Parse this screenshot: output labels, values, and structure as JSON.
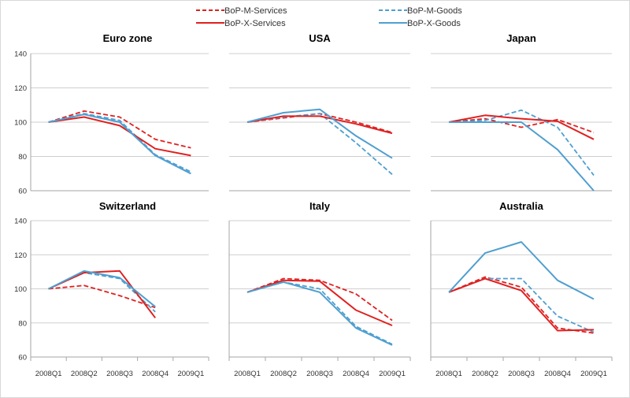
{
  "chart_data": {
    "type": "line",
    "legend": [
      {
        "name": "BoP-M-Services",
        "color": "#e02020",
        "dash": true
      },
      {
        "name": "BoP-M-Goods",
        "color": "#4f9fd0",
        "dash": true
      },
      {
        "name": "BoP-X-Services",
        "color": "#e02020",
        "dash": false
      },
      {
        "name": "BoP-X-Goods",
        "color": "#4f9fd0",
        "dash": false
      }
    ],
    "categories": [
      "2008Q1",
      "2008Q2",
      "2008Q3",
      "2008Q4",
      "2009Q1"
    ],
    "ylim": [
      60,
      140
    ],
    "yticks": [
      60,
      80,
      100,
      120,
      140
    ],
    "panels": [
      {
        "title": "Euro zone",
        "series": [
          {
            "name": "BoP-M-Services",
            "values": [
              100,
              106.5,
              103,
              90,
              85
            ]
          },
          {
            "name": "BoP-M-Goods",
            "values": [
              100,
              105,
              101,
              81,
              71
            ]
          },
          {
            "name": "BoP-X-Services",
            "values": [
              100,
              103,
              98,
              84.5,
              80.5
            ]
          },
          {
            "name": "BoP-X-Goods",
            "values": [
              100,
              104.5,
              100,
              80.5,
              70
            ]
          }
        ]
      },
      {
        "title": "USA",
        "series": [
          {
            "name": "BoP-M-Services",
            "values": [
              100,
              102.5,
              105,
              100,
              94
            ]
          },
          {
            "name": "BoP-M-Goods",
            "values": [
              100,
              103,
              105,
              88,
              69.5
            ]
          },
          {
            "name": "BoP-X-Services",
            "values": [
              100,
              103.5,
              103.5,
              99,
              93.5
            ]
          },
          {
            "name": "BoP-X-Goods",
            "values": [
              100,
              105.5,
              107.5,
              92,
              79
            ]
          }
        ]
      },
      {
        "title": "Japan",
        "series": [
          {
            "name": "BoP-M-Services",
            "values": [
              100,
              102,
              97,
              101.5,
              94
            ]
          },
          {
            "name": "BoP-M-Goods",
            "values": [
              100,
              101,
              107,
              97,
              69
            ]
          },
          {
            "name": "BoP-X-Services",
            "values": [
              100,
              104,
              102,
              100.5,
              90
            ]
          },
          {
            "name": "BoP-X-Goods",
            "values": [
              100,
              100,
              100,
              84,
              60
            ]
          }
        ]
      },
      {
        "title": "Switzerland",
        "series": [
          {
            "name": "BoP-M-Services",
            "values": [
              100,
              102,
              96,
              89,
              null
            ]
          },
          {
            "name": "BoP-M-Goods",
            "values": [
              100,
              109.5,
              106,
              86.5,
              null
            ]
          },
          {
            "name": "BoP-X-Services",
            "values": [
              100,
              109.5,
              110.5,
              83,
              null
            ]
          },
          {
            "name": "BoP-X-Goods",
            "values": [
              100,
              110.5,
              106.5,
              89.5,
              null
            ]
          }
        ]
      },
      {
        "title": "Italy",
        "series": [
          {
            "name": "BoP-M-Services",
            "values": [
              98,
              106,
              105,
              97,
              81.5
            ]
          },
          {
            "name": "BoP-M-Goods",
            "values": [
              98,
              104,
              100,
              78,
              67.5
            ]
          },
          {
            "name": "BoP-X-Services",
            "values": [
              98,
              105,
              104.5,
              87.5,
              78.5
            ]
          },
          {
            "name": "BoP-X-Goods",
            "values": [
              98,
              104,
              98,
              77,
              67
            ]
          }
        ]
      },
      {
        "title": "Australia",
        "series": [
          {
            "name": "BoP-M-Services",
            "values": [
              98,
              107,
              101,
              77,
              74
            ]
          },
          {
            "name": "BoP-M-Goods",
            "values": [
              98,
              106,
              106,
              84,
              74.5
            ]
          },
          {
            "name": "BoP-X-Services",
            "values": [
              98,
              106,
              99,
              75.5,
              76
            ]
          },
          {
            "name": "BoP-X-Goods",
            "values": [
              98,
              121,
              127.5,
              105,
              94
            ]
          }
        ]
      }
    ]
  }
}
